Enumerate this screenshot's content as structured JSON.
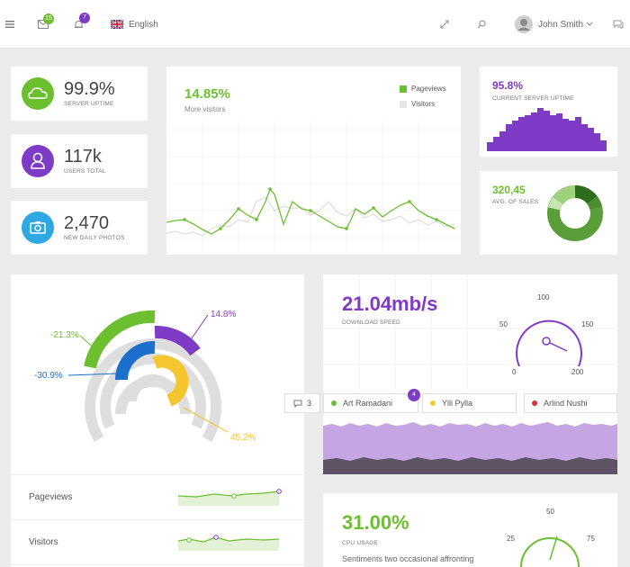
{
  "header": {
    "mail_badge": "15",
    "bell_badge": "7",
    "language": "English",
    "user_name": "John Smith"
  },
  "stats": {
    "uptime_value": "99.9%",
    "uptime_label": "SERVER UPTIME",
    "users_value": "117k",
    "users_label": "USERS TOTAL",
    "photos_value": "2,470",
    "photos_label": "NEW DAILY PHOTOS"
  },
  "visitors_card": {
    "value": "14.85%",
    "label": "More visitors",
    "legend_pageviews": "Pageviews",
    "legend_visitors": "Visitors"
  },
  "server_card": {
    "value": "95.8%",
    "label": "CURRENT SERVER UPTIME"
  },
  "sales_card": {
    "value": "320,45",
    "label": "AVG. OF SALES"
  },
  "radial_card": {
    "labels": {
      "a": "14.8%",
      "b": "-21.3%",
      "c": "-30.9%",
      "d": "45.2%"
    },
    "rows": [
      {
        "label": "Pageviews"
      },
      {
        "label": "Visitors"
      }
    ]
  },
  "download_card": {
    "value": "21.04mb/s",
    "label": "DOWNLOAD SPEED",
    "gauge_ticks": [
      "0",
      "50",
      "100",
      "150",
      "200"
    ]
  },
  "people": {
    "comment_count": "3",
    "badge": "4",
    "names": [
      "Art Ramadani",
      "Ylli Pylla",
      "Arlind Nushi"
    ]
  },
  "cpu_card": {
    "value": "31.00%",
    "label": "CPU USAGE",
    "text": "Sentiments two occasional affronting",
    "gauge_ticks": [
      "25",
      "50",
      "75"
    ]
  },
  "colors": {
    "green": "#6cbf2f",
    "purple": "#7e3bc6",
    "blue": "#1c6fcd",
    "yellow": "#f5c62e",
    "sky": "#2ea8e3",
    "gray": "#dcdcdc"
  }
}
